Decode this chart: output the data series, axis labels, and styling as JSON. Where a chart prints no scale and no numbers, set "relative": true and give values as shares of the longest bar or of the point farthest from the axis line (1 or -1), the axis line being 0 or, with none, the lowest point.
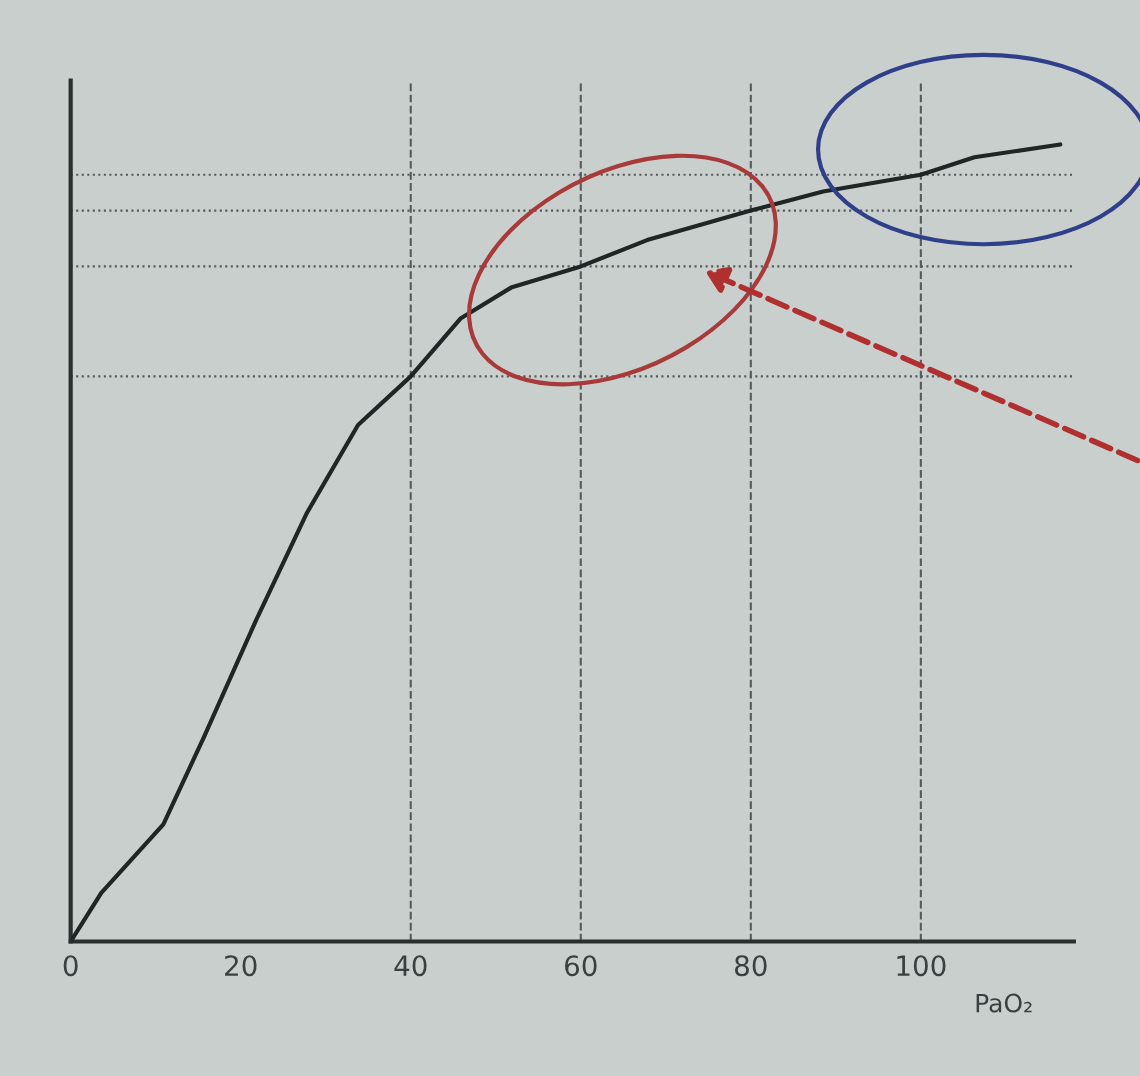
{
  "chart_data": {
    "type": "line",
    "relative": true,
    "xlabel": "PaO₂",
    "xlim": [
      0,
      118
    ],
    "xticks": [
      0,
      20,
      40,
      60,
      80,
      100
    ],
    "series": [
      {
        "color": "#1e2626",
        "x": [
          0,
          3.6,
          10.9,
          15.7,
          21.8,
          27.8,
          33.8,
          40,
          45.9,
          51.9,
          60,
          67.8,
          80,
          88.5,
          100,
          106.3,
          116.4
        ],
        "values": [
          0,
          0.061,
          0.147,
          0.257,
          0.403,
          0.538,
          0.648,
          0.709,
          0.782,
          0.821,
          0.847,
          0.88,
          0.917,
          0.941,
          0.962,
          0.984,
          1.0
        ]
      }
    ],
    "ref_lines": [
      {
        "axis": "y",
        "value": 0.962,
        "color": "#555b5b",
        "line_style": "dotted"
      },
      {
        "axis": "y",
        "value": 0.917,
        "color": "#555b5b",
        "line_style": "dotted"
      },
      {
        "axis": "y",
        "value": 0.847,
        "color": "#555b5b",
        "line_style": "dotted"
      },
      {
        "axis": "y",
        "value": 0.709,
        "color": "#555b5b",
        "line_style": "dotted"
      },
      {
        "axis": "x",
        "value": 40,
        "color": "#555b5b",
        "line_style": "dashed"
      },
      {
        "axis": "x",
        "value": 60,
        "color": "#555b5b",
        "line_style": "dashed"
      },
      {
        "axis": "x",
        "value": 80,
        "color": "#555b5b",
        "line_style": "dashed"
      },
      {
        "axis": "x",
        "value": 100,
        "color": "#555b5b",
        "line_style": "dashed"
      }
    ],
    "marker": "none",
    "line_style": "solid"
  }
}
